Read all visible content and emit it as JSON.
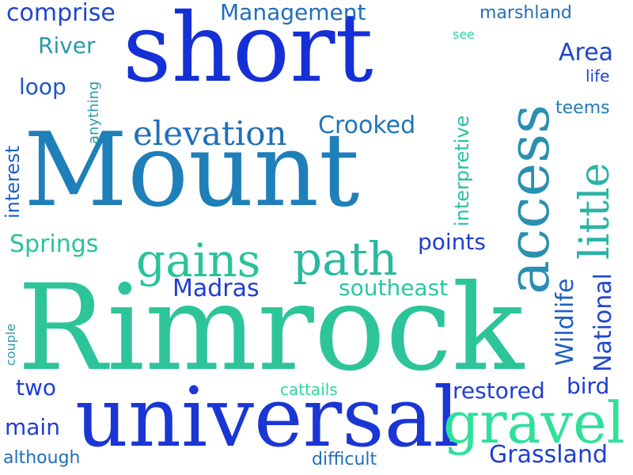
{
  "colors": {
    "blue": "#1a36d4",
    "dark_blue": "#1f2fd1",
    "teal_blue": "#1f7cb8",
    "teal": "#2a9aa8",
    "green": "#22c28a",
    "mint": "#2fe09a"
  },
  "words": [
    "short",
    "Mount",
    "Rimrock",
    "universal",
    "gravel",
    "access",
    "little",
    "gains",
    "path",
    "elevation",
    "Crooked",
    "Management",
    "comprise",
    "marshland",
    "River",
    "loop",
    "anything",
    "interest",
    "interpretive",
    "see",
    "Area",
    "life",
    "teems",
    "Springs",
    "points",
    "Madras",
    "southeast",
    "Wildlife",
    "National",
    "couple",
    "two",
    "main",
    "cattails",
    "restored",
    "bird",
    "although",
    "difficult",
    "Grassland"
  ]
}
